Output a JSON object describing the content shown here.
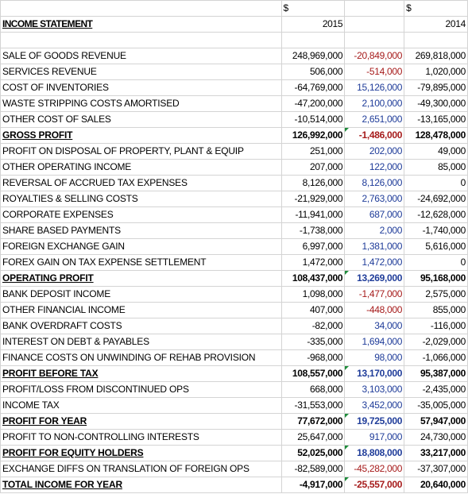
{
  "header": {
    "currency_2015": "$",
    "currency_2014": "$",
    "title": "INCOME STATEMENT",
    "year_2015": "2015",
    "year_2014": "2014"
  },
  "rows": [
    {
      "label": "SALE OF GOODS REVENUE",
      "v2015": "248,969,000",
      "change": "-20,849,000",
      "v2014": "269,818,000",
      "sign": "neg",
      "bold": false
    },
    {
      "label": "SERVICES REVENUE",
      "v2015": "506,000",
      "change": "-514,000",
      "v2014": "1,020,000",
      "sign": "neg",
      "bold": false
    },
    {
      "label": "COST OF INVENTORIES",
      "v2015": "-64,769,000",
      "change": "15,126,000",
      "v2014": "-79,895,000",
      "sign": "pos",
      "bold": false
    },
    {
      "label": "WASTE STRIPPING COSTS AMORTISED",
      "v2015": "-47,200,000",
      "change": "2,100,000",
      "v2014": "-49,300,000",
      "sign": "pos",
      "bold": false
    },
    {
      "label": "OTHER COST OF SALES",
      "v2015": "-10,514,000",
      "change": "2,651,000",
      "v2014": "-13,165,000",
      "sign": "pos",
      "bold": false
    },
    {
      "label": "GROSS PROFIT",
      "v2015": "126,992,000",
      "change": "-1,486,000",
      "v2014": "128,478,000",
      "sign": "neg",
      "bold": true,
      "flag": true
    },
    {
      "label": "PROFIT ON DISPOSAL OF PROPERTY, PLANT & EQUIP",
      "v2015": "251,000",
      "change": "202,000",
      "v2014": "49,000",
      "sign": "pos",
      "bold": false
    },
    {
      "label": "OTHER OPERATING INCOME",
      "v2015": "207,000",
      "change": "122,000",
      "v2014": "85,000",
      "sign": "pos",
      "bold": false
    },
    {
      "label": "REVERSAL OF ACCRUED TAX EXPENSES",
      "v2015": "8,126,000",
      "change": "8,126,000",
      "v2014": "0",
      "sign": "pos",
      "bold": false
    },
    {
      "label": "ROYALTIES & SELLING COSTS",
      "v2015": "-21,929,000",
      "change": "2,763,000",
      "v2014": "-24,692,000",
      "sign": "pos",
      "bold": false
    },
    {
      "label": "CORPORATE EXPENSES",
      "v2015": "-11,941,000",
      "change": "687,000",
      "v2014": "-12,628,000",
      "sign": "pos",
      "bold": false
    },
    {
      "label": "SHARE BASED PAYMENTS",
      "v2015": "-1,738,000",
      "change": "2,000",
      "v2014": "-1,740,000",
      "sign": "pos",
      "bold": false
    },
    {
      "label": "FOREIGN EXCHANGE GAIN",
      "v2015": "6,997,000",
      "change": "1,381,000",
      "v2014": "5,616,000",
      "sign": "pos",
      "bold": false
    },
    {
      "label": "FOREX GAIN ON TAX EXPENSE SETTLEMENT",
      "v2015": "1,472,000",
      "change": "1,472,000",
      "v2014": "0",
      "sign": "pos",
      "bold": false
    },
    {
      "label": "OPERATING PROFIT",
      "v2015": "108,437,000",
      "change": "13,269,000",
      "v2014": "95,168,000",
      "sign": "pos",
      "bold": true,
      "flag": true
    },
    {
      "label": "BANK DEPOSIT INCOME",
      "v2015": "1,098,000",
      "change": "-1,477,000",
      "v2014": "2,575,000",
      "sign": "neg",
      "bold": false
    },
    {
      "label": "OTHER FINANCIAL INCOME",
      "v2015": "407,000",
      "change": "-448,000",
      "v2014": "855,000",
      "sign": "neg",
      "bold": false
    },
    {
      "label": "BANK OVERDRAFT COSTS",
      "v2015": "-82,000",
      "change": "34,000",
      "v2014": "-116,000",
      "sign": "pos",
      "bold": false
    },
    {
      "label": "INTEREST ON DEBT & PAYABLES",
      "v2015": "-335,000",
      "change": "1,694,000",
      "v2014": "-2,029,000",
      "sign": "pos",
      "bold": false
    },
    {
      "label": "FINANCE COSTS ON UNWINDING OF REHAB PROVISION",
      "v2015": "-968,000",
      "change": "98,000",
      "v2014": "-1,066,000",
      "sign": "pos",
      "bold": false
    },
    {
      "label": "PROFIT BEFORE TAX",
      "v2015": "108,557,000",
      "change": "13,170,000",
      "v2014": "95,387,000",
      "sign": "pos",
      "bold": true,
      "flag": true
    },
    {
      "label": "PROFIT/LOSS FROM DISCONTINUED OPS",
      "v2015": "668,000",
      "change": "3,103,000",
      "v2014": "-2,435,000",
      "sign": "pos",
      "bold": false
    },
    {
      "label": "INCOME TAX",
      "v2015": "-31,553,000",
      "change": "3,452,000",
      "v2014": "-35,005,000",
      "sign": "pos",
      "bold": false
    },
    {
      "label": "PROFIT FOR YEAR",
      "v2015": "77,672,000",
      "change": "19,725,000",
      "v2014": "57,947,000",
      "sign": "pos",
      "bold": true,
      "flag": true
    },
    {
      "label": "PROFIT TO NON-CONTROLLING INTERESTS",
      "v2015": "25,647,000",
      "change": "917,000",
      "v2014": "24,730,000",
      "sign": "pos",
      "bold": false
    },
    {
      "label": "PROFIT FOR EQUITY HOLDERS",
      "v2015": "52,025,000",
      "change": "18,808,000",
      "v2014": "33,217,000",
      "sign": "pos",
      "bold": true,
      "flag": true
    },
    {
      "label": "EXCHANGE DIFFS ON TRANSLATION OF FOREIGN OPS",
      "v2015": "-82,589,000",
      "change": "-45,282,000",
      "v2014": "-37,307,000",
      "sign": "neg",
      "bold": false
    },
    {
      "label": "TOTAL INCOME FOR YEAR",
      "v2015": "-4,917,000",
      "change": "-25,557,000",
      "v2014": "20,640,000",
      "sign": "neg",
      "bold": true,
      "flag": true
    }
  ]
}
